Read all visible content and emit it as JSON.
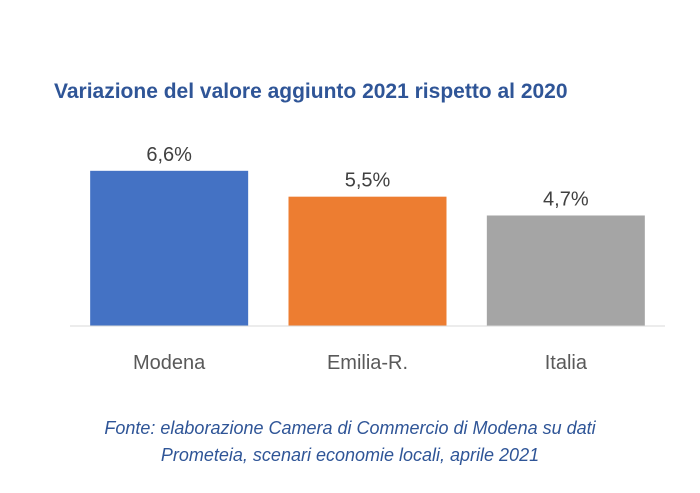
{
  "chart_data": {
    "type": "bar",
    "title": "Variazione del valore aggiunto 2021 rispetto al 2020",
    "categories": [
      "Modena",
      "Emilia-R.",
      "Italia"
    ],
    "values": [
      6.6,
      5.5,
      4.7
    ],
    "value_labels": [
      "6,6%",
      "5,5%",
      "4,7%"
    ],
    "colors": [
      "#4472c4",
      "#ed7d31",
      "#a5a5a5"
    ],
    "ylim": [
      0,
      7.4
    ],
    "grid": false,
    "legend": "none"
  },
  "source": {
    "line1": "Fonte: elaborazione Camera di Commercio di Modena su dati",
    "line2": "Prometeia, scenari economie locali, aprile  2021"
  }
}
